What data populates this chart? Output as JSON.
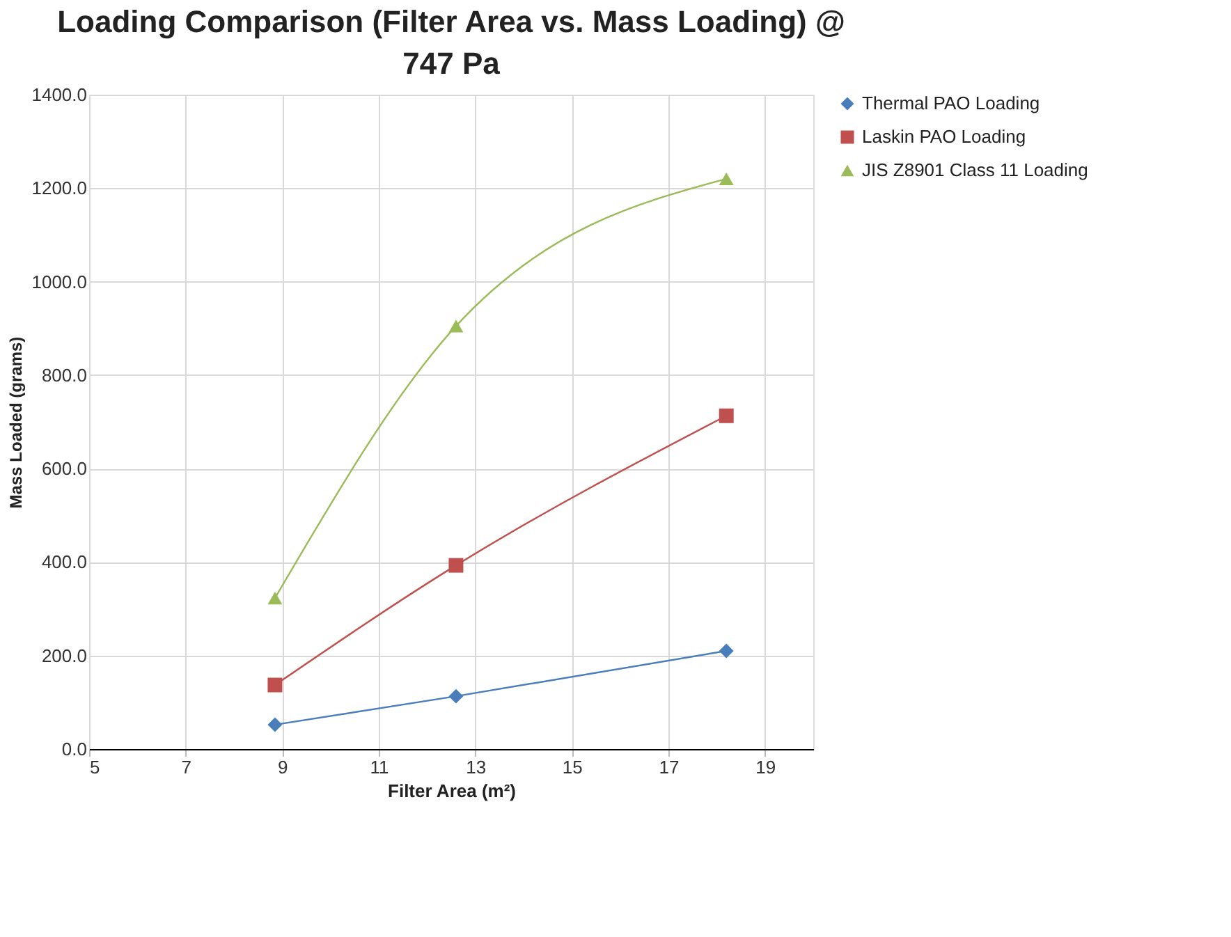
{
  "chart_data": {
    "type": "line",
    "title": "Loading Comparison (Filter Area vs. Mass Loading) @ 747 Pa",
    "xlabel": "Filter Area (m²)",
    "ylabel": "Mass Loaded (grams)",
    "xlim": [
      5,
      20
    ],
    "xticks": [
      5,
      7,
      9,
      11,
      13,
      15,
      17,
      19
    ],
    "ylim": [
      0,
      1400
    ],
    "yticks": [
      {
        "value": 0,
        "label": "0.0"
      },
      {
        "value": 200,
        "label": "200.0"
      },
      {
        "value": 400,
        "label": "400.0"
      },
      {
        "value": 600,
        "label": "600.0"
      },
      {
        "value": 800,
        "label": "800.0"
      },
      {
        "value": 1000,
        "label": "1000.0"
      },
      {
        "value": 1200,
        "label": "1200.0"
      },
      {
        "value": 1400,
        "label": "1400.0"
      }
    ],
    "grid": true,
    "legend": "right",
    "line_style": "solid",
    "series": [
      {
        "name": "Thermal PAO Loading",
        "color": "#4a7ebb",
        "marker": "diamond",
        "x": [
          8.85,
          12.6,
          18.2
        ],
        "values": [
          52,
          113,
          210
        ]
      },
      {
        "name": "Laskin PAO Loading",
        "color": "#c0504d",
        "marker": "square",
        "x": [
          8.85,
          12.6,
          18.2
        ],
        "values": [
          137,
          393,
          713
        ]
      },
      {
        "name": "JIS Z8901 Class 11 Loading",
        "color": "#9bbb59",
        "marker": "triangle",
        "x": [
          8.85,
          12.6,
          18.2
        ],
        "values": [
          323,
          905,
          1220
        ]
      }
    ]
  }
}
